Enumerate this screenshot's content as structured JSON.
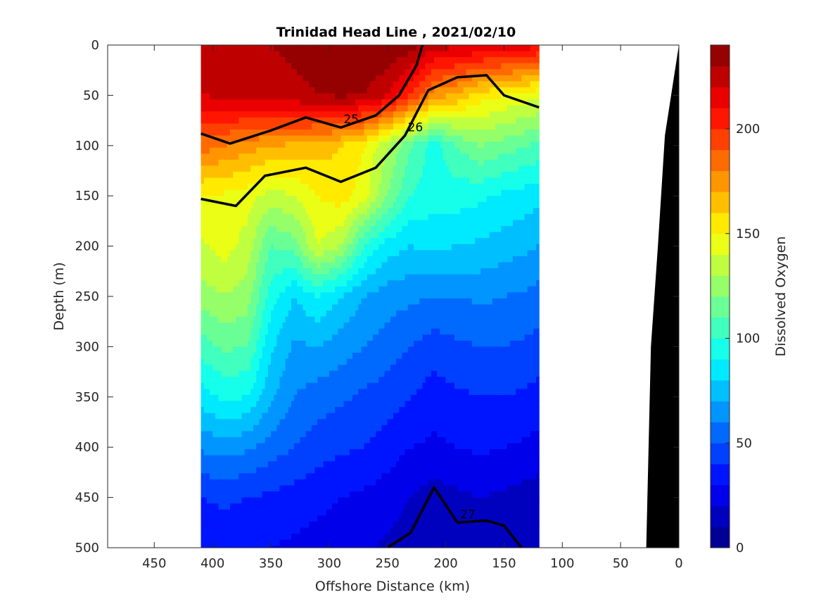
{
  "chart_data": {
    "type": "heatmap",
    "title": "Trinidad Head Line , 2021/02/10",
    "xlabel": "Offshore Distance (km)",
    "ylabel": "Depth (m)",
    "xlim": [
      490,
      0
    ],
    "ylim": [
      0,
      500
    ],
    "x_ticks": [
      "450",
      "400",
      "350",
      "300",
      "250",
      "200",
      "150",
      "100",
      "50",
      "0"
    ],
    "x_tick_values": [
      450,
      400,
      350,
      300,
      250,
      200,
      150,
      100,
      50,
      0
    ],
    "y_ticks": [
      "0",
      "50",
      "100",
      "150",
      "200",
      "250",
      "300",
      "350",
      "400",
      "450",
      "500"
    ],
    "y_tick_values": [
      0,
      50,
      100,
      150,
      200,
      250,
      300,
      350,
      400,
      450,
      500
    ],
    "data_extent_x": [
      410,
      120
    ],
    "colorbar": {
      "label": "Dissolved Oxygen",
      "range": [
        0,
        240
      ],
      "ticks": [
        "0",
        "50",
        "100",
        "150",
        "200"
      ],
      "tick_values": [
        0,
        50,
        100,
        150,
        200
      ],
      "levels": 24,
      "colormap": "jet"
    },
    "stations_x": [
      410,
      390,
      370,
      350,
      330,
      310,
      290,
      270,
      250,
      230,
      210,
      190,
      170,
      150,
      130,
      120
    ],
    "oxygen_profiles": [
      {
        "depth": 0,
        "values": [
          225,
          230,
          228,
          230,
          232,
          233,
          235,
          238,
          240,
          235,
          225,
          222,
          220,
          218,
          215,
          212
        ]
      },
      {
        "depth": 50,
        "values": [
          220,
          222,
          224,
          226,
          228,
          230,
          232,
          230,
          220,
          200,
          175,
          168,
          155,
          150,
          145,
          142
        ]
      },
      {
        "depth": 100,
        "values": [
          185,
          180,
          175,
          170,
          168,
          165,
          160,
          150,
          130,
          110,
          95,
          110,
          120,
          115,
          110,
          108
        ]
      },
      {
        "depth": 150,
        "values": [
          150,
          148,
          145,
          135,
          140,
          150,
          155,
          145,
          120,
          100,
          95,
          95,
          92,
          88,
          85,
          82
        ]
      },
      {
        "depth": 200,
        "values": [
          138,
          145,
          135,
          110,
          115,
          140,
          130,
          100,
          85,
          80,
          82,
          80,
          78,
          75,
          72,
          70
        ]
      },
      {
        "depth": 250,
        "values": [
          125,
          130,
          125,
          95,
          80,
          90,
          80,
          70,
          65,
          62,
          60,
          60,
          62,
          60,
          58,
          56
        ]
      },
      {
        "depth": 300,
        "values": [
          105,
          112,
          110,
          82,
          68,
          70,
          65,
          60,
          55,
          50,
          45,
          48,
          50,
          50,
          48,
          46
        ]
      },
      {
        "depth": 350,
        "values": [
          85,
          92,
          90,
          72,
          60,
          55,
          52,
          48,
          45,
          40,
          35,
          38,
          40,
          40,
          38,
          36
        ]
      },
      {
        "depth": 400,
        "values": [
          62,
          65,
          62,
          55,
          50,
          45,
          42,
          40,
          35,
          30,
          28,
          30,
          32,
          30,
          28,
          26
        ]
      },
      {
        "depth": 450,
        "values": [
          40,
          42,
          40,
          38,
          36,
          33,
          30,
          28,
          25,
          20,
          15,
          18,
          20,
          18,
          16,
          15
        ]
      },
      {
        "depth": 500,
        "values": [
          32,
          33,
          32,
          30,
          28,
          26,
          24,
          22,
          18,
          14,
          10,
          12,
          14,
          12,
          10,
          10
        ]
      }
    ],
    "density_contours": [
      {
        "label": "25",
        "bold": true,
        "points": [
          [
            410,
            88
          ],
          [
            385,
            98
          ],
          [
            350,
            85
          ],
          [
            320,
            72
          ],
          [
            290,
            82
          ],
          [
            260,
            70
          ],
          [
            240,
            50
          ],
          [
            225,
            20
          ],
          [
            220,
            0
          ]
        ]
      },
      {
        "label": "26",
        "bold": true,
        "points": [
          [
            410,
            153
          ],
          [
            380,
            160
          ],
          [
            355,
            130
          ],
          [
            320,
            122
          ],
          [
            290,
            136
          ],
          [
            260,
            122
          ],
          [
            235,
            90
          ],
          [
            215,
            45
          ],
          [
            190,
            32
          ],
          [
            165,
            30
          ],
          [
            150,
            50
          ],
          [
            120,
            62
          ]
        ]
      },
      {
        "label": "27",
        "bold": true,
        "points": [
          [
            250,
            500
          ],
          [
            230,
            485
          ],
          [
            210,
            440
          ],
          [
            190,
            475
          ],
          [
            165,
            473
          ],
          [
            150,
            478
          ],
          [
            135,
            500
          ]
        ]
      }
    ],
    "bathymetry": [
      [
        28,
        500
      ],
      [
        24,
        300
      ],
      [
        18,
        200
      ],
      [
        12,
        90
      ],
      [
        0,
        0
      ],
      [
        0,
        500
      ]
    ]
  }
}
